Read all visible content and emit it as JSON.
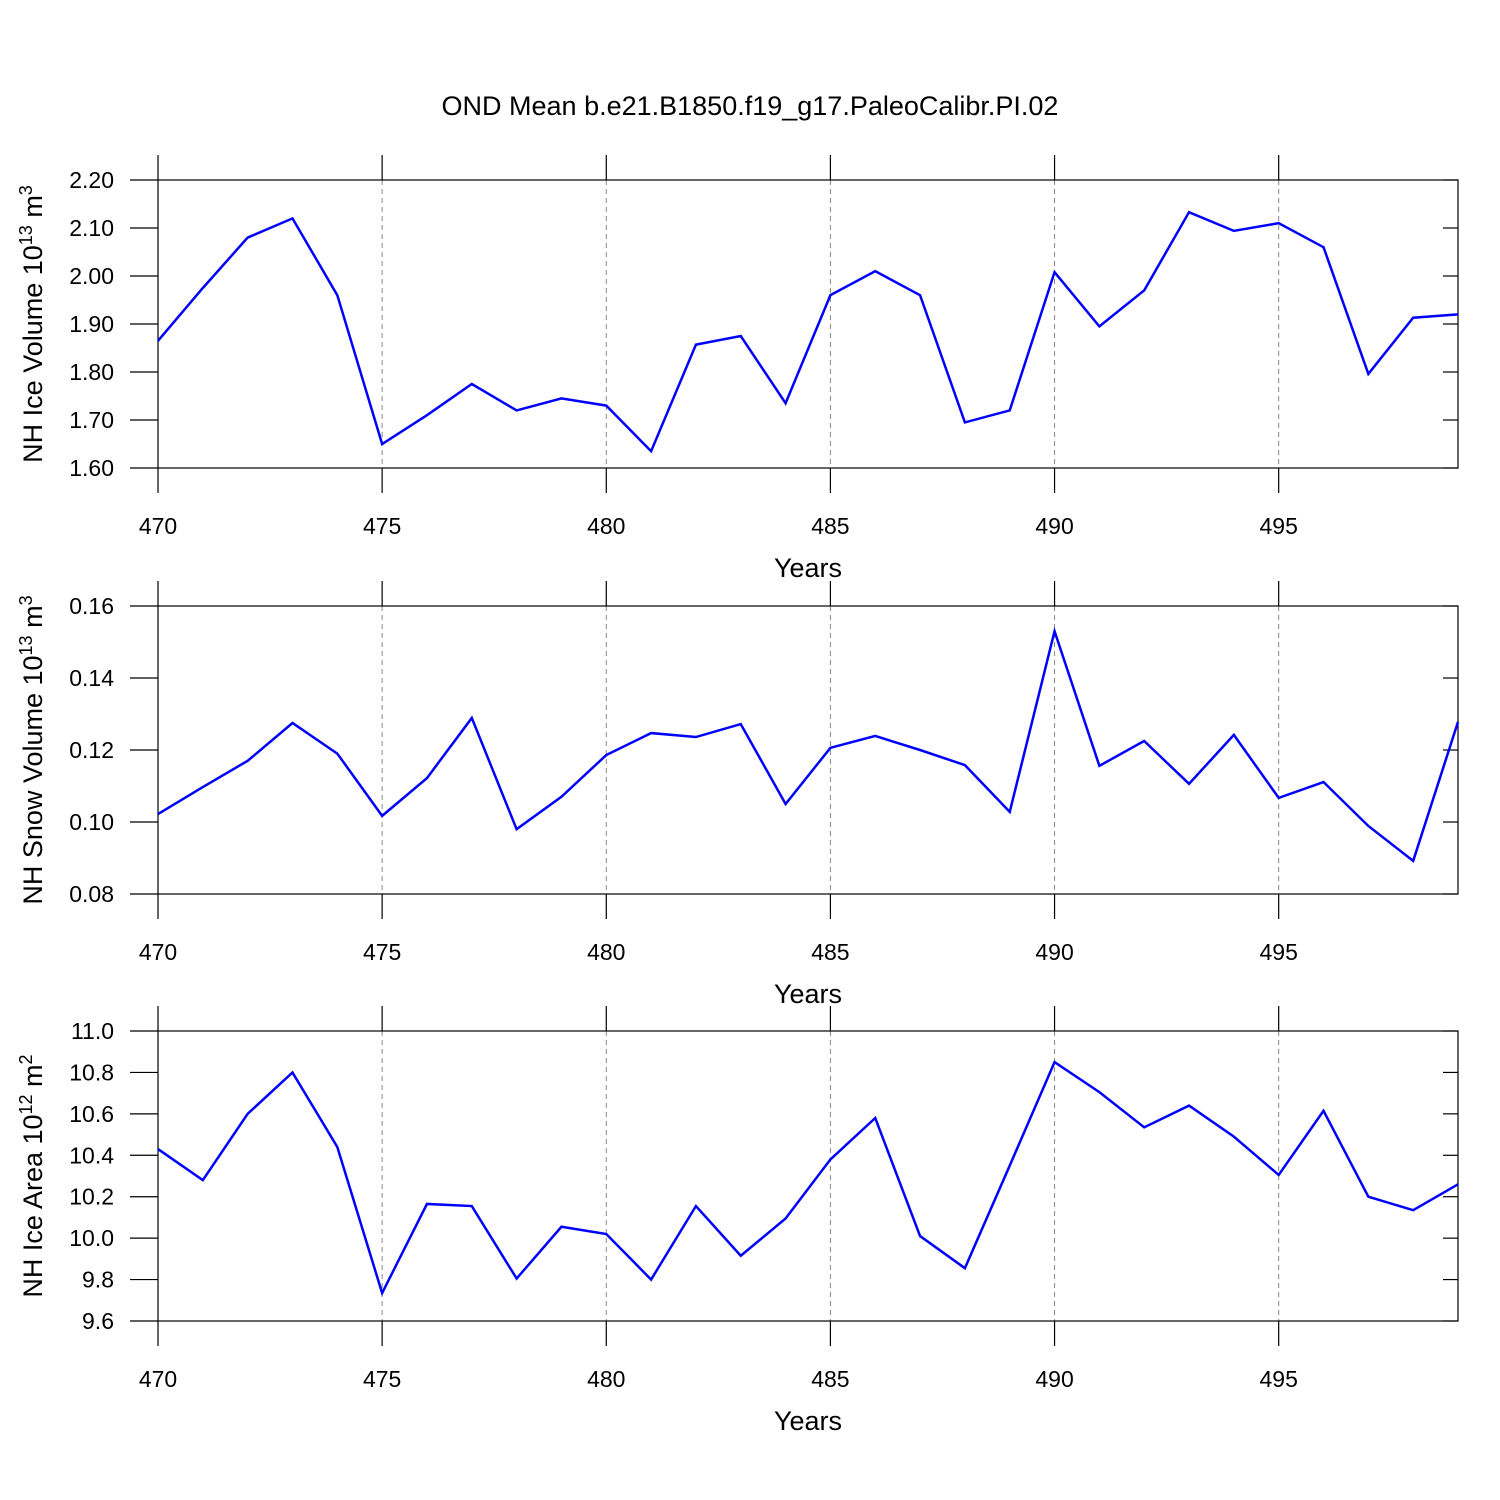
{
  "title": "OND Mean b.e21.B1850.f19_g17.PaleoCalibr.PI.02",
  "chart_data": [
    {
      "type": "line",
      "xlabel": "Years",
      "ylabel": [
        "NH Ice Volume 10",
        "13",
        " m",
        "3"
      ],
      "x": [
        470,
        471,
        472,
        473,
        474,
        475,
        476,
        477,
        478,
        479,
        480,
        481,
        482,
        483,
        484,
        485,
        486,
        487,
        488,
        489,
        490,
        491,
        492,
        493,
        494,
        495,
        496,
        497,
        498,
        499
      ],
      "series": [
        {
          "color": "#0000ff",
          "values": [
            1.865,
            1.975,
            2.08,
            2.12,
            1.96,
            1.65,
            1.71,
            1.775,
            1.72,
            1.745,
            1.73,
            1.635,
            1.857,
            1.875,
            1.735,
            1.96,
            2.01,
            1.96,
            1.695,
            1.72,
            2.008,
            1.895,
            1.97,
            2.133,
            2.094,
            2.11,
            2.06,
            1.796,
            1.913,
            1.92
          ]
        }
      ],
      "xlim": [
        470,
        499
      ],
      "xticks": [
        470,
        475,
        480,
        485,
        490,
        495
      ],
      "ylim": [
        1.6,
        2.2
      ],
      "yticks": [
        {
          "value": 1.6,
          "label": "1.60"
        },
        {
          "value": 1.7,
          "label": "1.70"
        },
        {
          "value": 1.8,
          "label": "1.80"
        },
        {
          "value": 1.9,
          "label": "1.90"
        },
        {
          "value": 2.0,
          "label": "2.00"
        },
        {
          "value": 2.1,
          "label": "2.10"
        },
        {
          "value": 2.2,
          "label": "2.20"
        }
      ],
      "grid": true
    },
    {
      "type": "line",
      "xlabel": "Years",
      "ylabel": [
        "NH Snow Volume 10",
        "13",
        " m",
        "3"
      ],
      "x": [
        470,
        471,
        472,
        473,
        474,
        475,
        476,
        477,
        478,
        479,
        480,
        481,
        482,
        483,
        484,
        485,
        486,
        487,
        488,
        489,
        490,
        491,
        492,
        493,
        494,
        495,
        496,
        497,
        498,
        499
      ],
      "series": [
        {
          "color": "#0000ff",
          "values": [
            0.1022,
            0.1097,
            0.117,
            0.1275,
            0.119,
            0.1017,
            0.1122,
            0.1289,
            0.098,
            0.107,
            0.1186,
            0.1247,
            0.1236,
            0.1272,
            0.105,
            0.1206,
            0.1239,
            0.12,
            0.1158,
            0.1028,
            0.153,
            0.1156,
            0.1225,
            0.1106,
            0.1242,
            0.1067,
            0.1111,
            0.0989,
            0.0892,
            0.1278
          ]
        }
      ],
      "xlim": [
        470,
        499
      ],
      "xticks": [
        470,
        475,
        480,
        485,
        490,
        495
      ],
      "ylim": [
        0.08,
        0.16
      ],
      "yticks": [
        0.08,
        {
          "value": 0.1,
          "label": "0.10"
        },
        0.12,
        0.14,
        0.16
      ],
      "grid": true
    },
    {
      "type": "line",
      "xlabel": "Years",
      "ylabel": [
        "NH Ice Area 10",
        "12",
        " m",
        "2"
      ],
      "x": [
        470,
        471,
        472,
        473,
        474,
        475,
        476,
        477,
        478,
        479,
        480,
        481,
        482,
        483,
        484,
        485,
        486,
        487,
        488,
        489,
        490,
        491,
        492,
        493,
        494,
        495,
        496,
        497,
        498,
        499
      ],
      "series": [
        {
          "color": "#0000ff",
          "values": [
            10.43,
            10.28,
            10.6,
            10.8,
            10.44,
            9.735,
            10.165,
            10.155,
            9.805,
            10.055,
            10.02,
            9.8,
            10.155,
            9.915,
            10.095,
            10.38,
            10.58,
            10.01,
            9.855,
            10.35,
            10.85,
            10.705,
            10.535,
            10.64,
            10.49,
            10.305,
            10.615,
            10.2,
            10.135,
            10.26
          ]
        }
      ],
      "xlim": [
        470,
        499
      ],
      "xticks": [
        470,
        475,
        480,
        485,
        490,
        495
      ],
      "ylim": [
        9.6,
        11.0
      ],
      "yticks": [
        9.6,
        9.8,
        {
          "value": 10,
          "label": "10.0"
        },
        10.2,
        10.4,
        10.6,
        10.8,
        {
          "value": 11,
          "label": "11.0"
        }
      ],
      "grid": true
    }
  ]
}
